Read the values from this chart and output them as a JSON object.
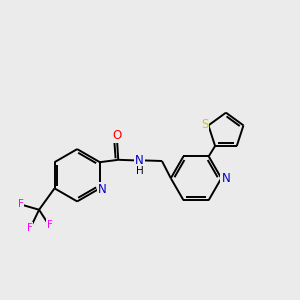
{
  "bg_color": "#ebebeb",
  "bond_color": "#000000",
  "atom_colors": {
    "N": "#0000cc",
    "O": "#ff0000",
    "S": "#cccc00",
    "F": "#ff00ff",
    "C": "#000000"
  },
  "lw": 1.4,
  "fs": 8.5,
  "fs_small": 7.5,
  "xlim": [
    0,
    10
  ],
  "ylim": [
    1.5,
    10.5
  ]
}
